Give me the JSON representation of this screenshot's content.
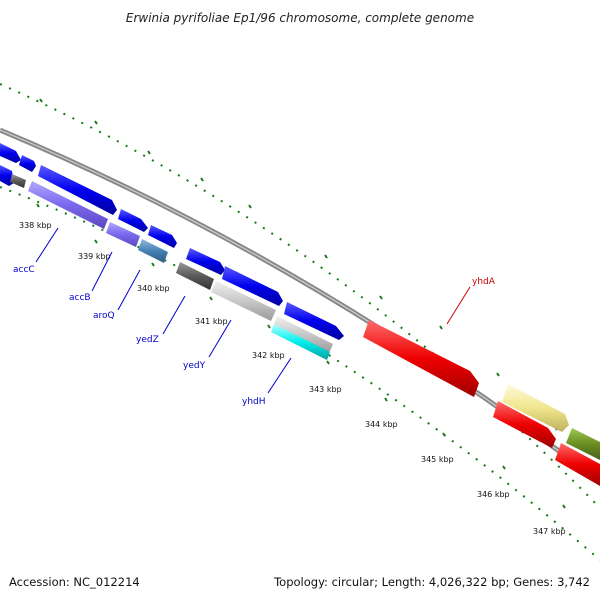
{
  "title": "Erwinia pyrifoliae Ep1/96 chromosome, complete genome",
  "accession": "Accession: NC_012214",
  "summary": "Topology: circular; Length: 4,026,322 bp; Genes: 3,742",
  "ticks": [
    "338 kbp",
    "339 kbp",
    "340 kbp",
    "341 kbp",
    "342 kbp",
    "343 kbp",
    "344 kbp",
    "345 kbp",
    "346 kbp",
    "347 kbp"
  ],
  "genes": {
    "accC": "accC",
    "accB": "accB",
    "aroQ": "aroQ",
    "yedZ": "yedZ",
    "yedY": "yedY",
    "yhdH": "yhdH",
    "yhdA": "yhdA"
  },
  "colors": {
    "forward_gene": "#0000ee",
    "reverse_gene": "#ee0000",
    "label_blue": "#0000cc",
    "label_red": "#cc0000",
    "tick_green": "#1a7a1a",
    "backbone": "#888888"
  }
}
